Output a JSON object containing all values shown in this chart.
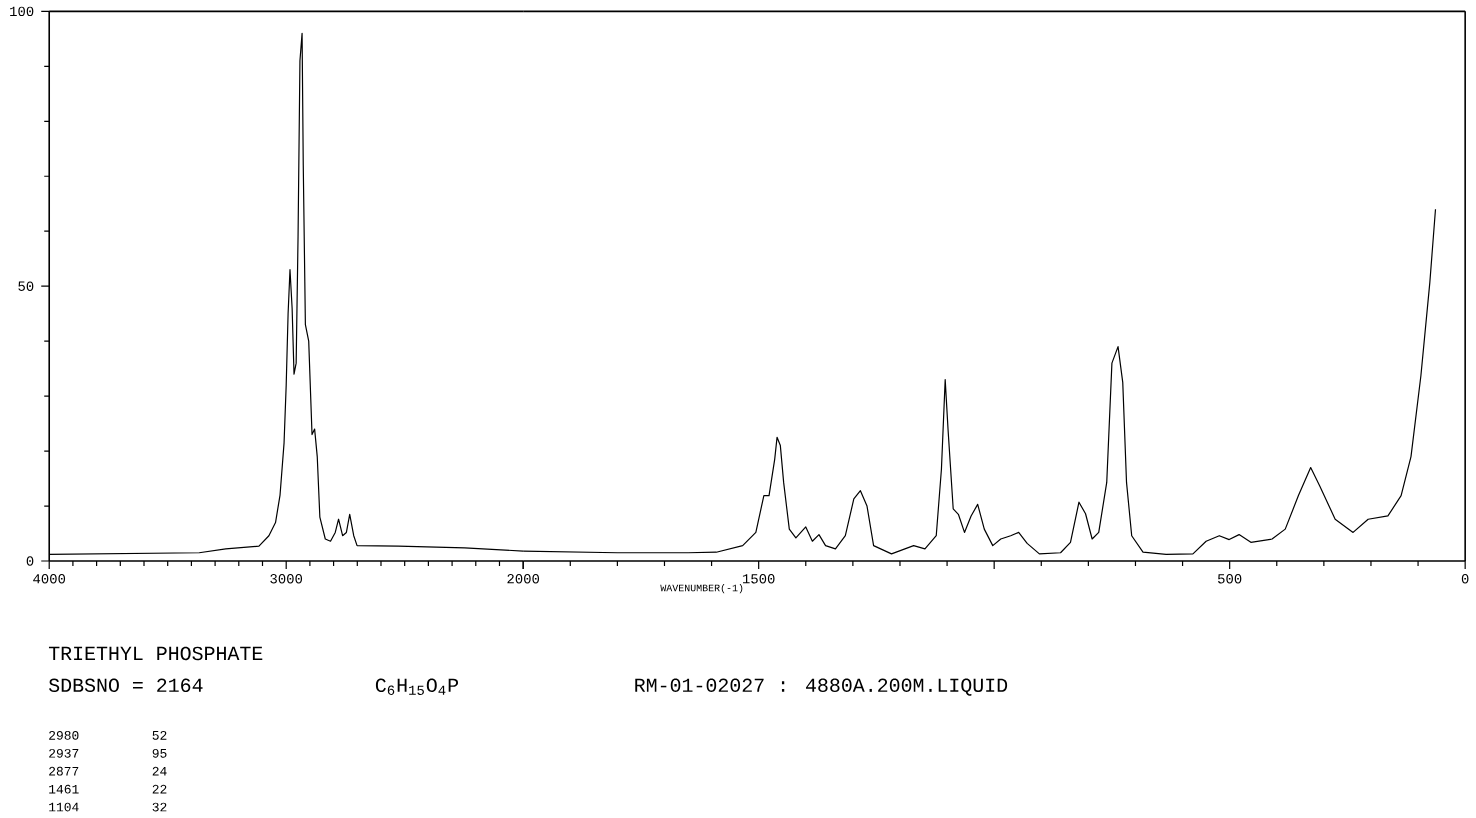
{
  "chart_data": [
    {
      "type": "line",
      "title": "TRIETHYL PHOSPHATE",
      "annotations": [
        "SDBSNO = 2164",
        "C$_{6}$H$_{15}$O$_{4}$P",
        "RM-01-02027 : 4880A.200M.LIQUID",
        "2980",
        "52",
        "2937",
        "95",
        "2877",
        "24",
        "1461",
        "22",
        "1104",
        "32"
      ],
      "xlim": [
        4000,
        2000
      ],
      "xticks": [
        4000,
        3000,
        2000
      ],
      "ylim": [
        0,
        100
      ],
      "yticks": [
        0,
        50,
        100
      ],
      "series": [
        {
          "color": "#000000",
          "x": [
            4000,
            3367,
            3255,
            3115,
            3073,
            3045,
            3026,
            3009,
            3000,
            2992,
            2984,
            2975,
            2967,
            2958,
            2950,
            2942,
            2933,
            2928,
            2919,
            2905,
            2891,
            2880,
            2869,
            2858,
            2835,
            2813,
            2793,
            2779,
            2762,
            2746,
            2732,
            2715,
            2701,
            2527,
            2247,
            2000
          ],
          "values": [
            1.2,
            1.5,
            2.2,
            2.7,
            4.6,
            7,
            12,
            21.5,
            32,
            45,
            53,
            46,
            34,
            36,
            59,
            91,
            96,
            72,
            43,
            40,
            23,
            24,
            19,
            8,
            4,
            3.6,
            5.2,
            7.6,
            4.6,
            5.2,
            8.5,
            4.6,
            2.8,
            2.7,
            2.4,
            1.8
          ]
        }
      ]
    },
    {
      "type": "line",
      "xlabel": "WAVENUMBER(-1)",
      "xlim": [
        2000,
        0
      ],
      "xticks": [
        {
          "value": 2000,
          "label": null
        },
        1500,
        {
          "value": 1000,
          "label": null
        },
        500,
        0
      ],
      "ylim": [
        0,
        100
      ],
      "tick_labels": "x",
      "series": [
        {
          "color": "#000000",
          "x": [
            2000,
            1800,
            1650,
            1590,
            1534,
            1506,
            1489,
            1478,
            1466,
            1461,
            1454,
            1447,
            1435,
            1421,
            1400,
            1386,
            1372,
            1358,
            1337,
            1316,
            1298,
            1284,
            1270,
            1256,
            1218,
            1171,
            1147,
            1123,
            1112,
            1104,
            1098,
            1087,
            1076,
            1063,
            1049,
            1035,
            1021,
            1003,
            986,
            965,
            948,
            930,
            904,
            859,
            838,
            820,
            806,
            792,
            778,
            761,
            750,
            737,
            727,
            719,
            708,
            684,
            635,
            578,
            550,
            522,
            501,
            480,
            455,
            410,
            382,
            354,
            328,
            309,
            276,
            238,
            206,
            164,
            136,
            115,
            94,
            75,
            63
          ],
          "values": [
            1.8,
            1.5,
            1.5,
            1.6,
            2.8,
            5.2,
            11.9,
            11.9,
            18.5,
            22.5,
            21,
            14.3,
            5.8,
            4.2,
            6.2,
            3.6,
            4.8,
            2.8,
            2.2,
            4.6,
            11.3,
            12.8,
            10,
            2.8,
            1.3,
            2.8,
            2.2,
            4.6,
            16.7,
            33,
            24,
            9.5,
            8.5,
            5.2,
            8.2,
            10.3,
            5.8,
            2.8,
            4,
            4.6,
            5.2,
            3.2,
            1.3,
            1.5,
            3.4,
            10.7,
            8.6,
            4,
            5.2,
            14.3,
            36,
            39,
            32.5,
            14.3,
            4.6,
            1.6,
            1.2,
            1.3,
            3.6,
            4.6,
            3.9,
            4.8,
            3.4,
            4,
            5.8,
            11.9,
            17,
            13.7,
            7.6,
            5.2,
            7.6,
            8.2,
            11.9,
            19,
            33.7,
            50.7,
            64
          ]
        }
      ]
    }
  ]
}
